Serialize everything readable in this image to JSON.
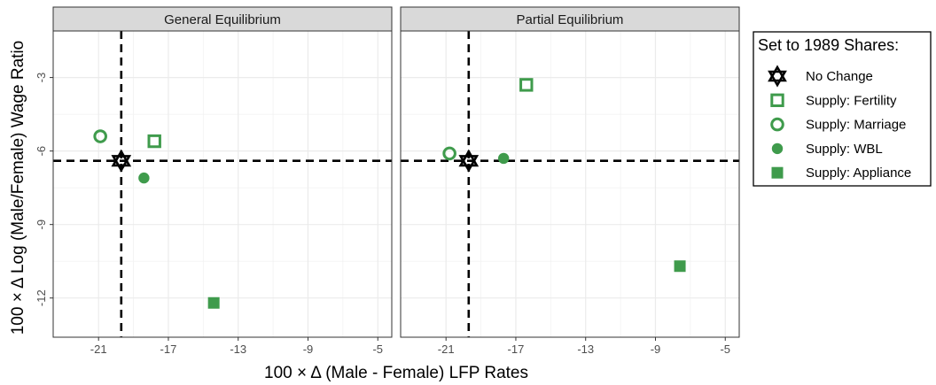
{
  "chart_data": {
    "type": "scatter",
    "xlabel": "100 × Δ (Male - Female) LFP Rates",
    "ylabel": "100 × Δ Log (Male/Female) Wage Ratio",
    "xlim": [
      -23.6,
      -4.2
    ],
    "ylim": [
      -13.6,
      -1.1
    ],
    "x_ticks": [
      -21,
      -17,
      -13,
      -9,
      -5
    ],
    "y_ticks": [
      -3,
      -6,
      -9,
      -12
    ],
    "grid": true,
    "reference_lines": {
      "x": -19.7,
      "y": -6.4
    },
    "legend": {
      "title": "Set to 1989 Shares:",
      "position": "right",
      "entries": [
        {
          "label": "No Change",
          "marker": "star-of-david",
          "color": "#000000"
        },
        {
          "label": "Supply: Fertility",
          "marker": "open-square",
          "color": "#3f9b4c"
        },
        {
          "label": "Supply: Marriage",
          "marker": "open-circle",
          "color": "#3f9b4c"
        },
        {
          "label": "Supply: WBL",
          "marker": "filled-circle",
          "color": "#3f9b4c"
        },
        {
          "label": "Supply: Appliance",
          "marker": "filled-square",
          "color": "#3f9b4c"
        }
      ]
    },
    "facets": [
      {
        "title": "General Equilibrium",
        "points": [
          {
            "series": "No Change",
            "x": -19.7,
            "y": -6.4
          },
          {
            "series": "Supply: Fertility",
            "x": -17.8,
            "y": -5.6
          },
          {
            "series": "Supply: Marriage",
            "x": -20.9,
            "y": -5.4
          },
          {
            "series": "Supply: WBL",
            "x": -18.4,
            "y": -7.1
          },
          {
            "series": "Supply: Appliance",
            "x": -14.4,
            "y": -12.2
          }
        ]
      },
      {
        "title": "Partial Equilibrium",
        "points": [
          {
            "series": "No Change",
            "x": -19.7,
            "y": -6.4
          },
          {
            "series": "Supply: Fertility",
            "x": -16.4,
            "y": -3.3
          },
          {
            "series": "Supply: Marriage",
            "x": -20.8,
            "y": -6.1
          },
          {
            "series": "Supply: WBL",
            "x": -17.7,
            "y": -6.3
          },
          {
            "series": "Supply: Appliance",
            "x": -7.6,
            "y": -10.7
          }
        ]
      }
    ]
  }
}
